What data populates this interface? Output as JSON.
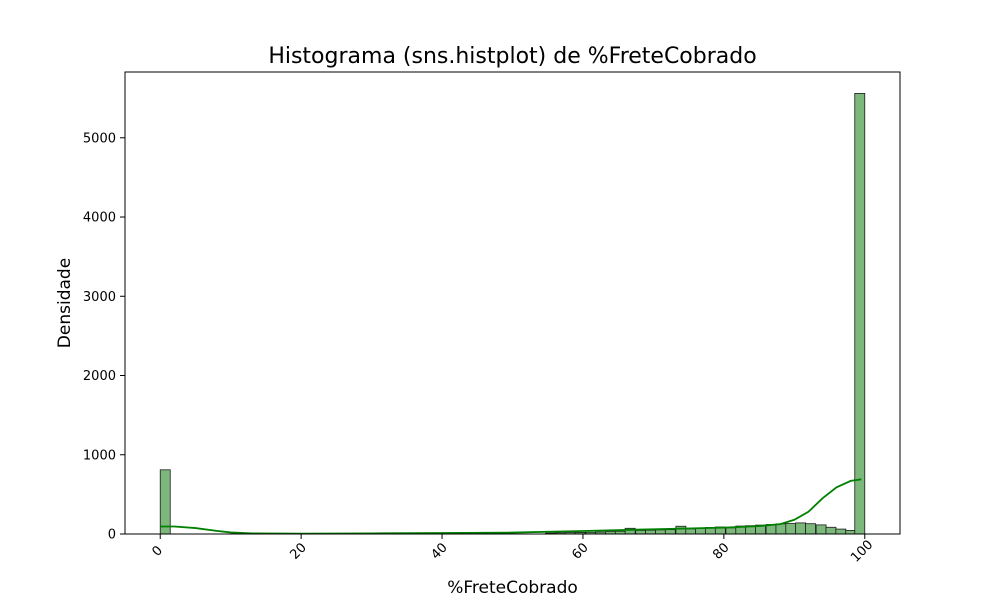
{
  "chart_data": {
    "type": "bar",
    "title": "Histograma (sns.histplot) de %FreteCobrado",
    "xlabel": "%FreteCobrado",
    "ylabel": "Densidade",
    "xlim": [
      -5,
      105
    ],
    "ylim": [
      0,
      5830
    ],
    "xticks": [
      0,
      20,
      40,
      60,
      80,
      100
    ],
    "yticks": [
      0,
      1000,
      2000,
      3000,
      4000,
      5000
    ],
    "bin_width": 1.42,
    "grid": false,
    "colors": {
      "bar_fill": "#7cb87c",
      "bar_edge": "#1a1a1a",
      "kde_line": "#008000"
    },
    "bins": [
      {
        "x": 0.71,
        "count": 810
      },
      {
        "x": 55.4,
        "count": 12
      },
      {
        "x": 56.8,
        "count": 15
      },
      {
        "x": 58.2,
        "count": 18
      },
      {
        "x": 59.6,
        "count": 20
      },
      {
        "x": 61.1,
        "count": 22
      },
      {
        "x": 62.5,
        "count": 25
      },
      {
        "x": 63.9,
        "count": 30
      },
      {
        "x": 65.3,
        "count": 35
      },
      {
        "x": 66.7,
        "count": 72
      },
      {
        "x": 68.2,
        "count": 45
      },
      {
        "x": 69.6,
        "count": 48
      },
      {
        "x": 71.0,
        "count": 52
      },
      {
        "x": 72.4,
        "count": 55
      },
      {
        "x": 73.9,
        "count": 98
      },
      {
        "x": 75.3,
        "count": 65
      },
      {
        "x": 76.7,
        "count": 70
      },
      {
        "x": 78.1,
        "count": 82
      },
      {
        "x": 79.5,
        "count": 88
      },
      {
        "x": 81.0,
        "count": 78
      },
      {
        "x": 82.4,
        "count": 100
      },
      {
        "x": 83.8,
        "count": 105
      },
      {
        "x": 85.2,
        "count": 112
      },
      {
        "x": 86.7,
        "count": 120
      },
      {
        "x": 88.1,
        "count": 128
      },
      {
        "x": 89.5,
        "count": 132
      },
      {
        "x": 90.9,
        "count": 140
      },
      {
        "x": 92.3,
        "count": 130
      },
      {
        "x": 93.8,
        "count": 115
      },
      {
        "x": 95.2,
        "count": 85
      },
      {
        "x": 96.6,
        "count": 62
      },
      {
        "x": 98.0,
        "count": 45
      },
      {
        "x": 99.29,
        "count": 5560
      }
    ],
    "kde": {
      "x": [
        0,
        2,
        5,
        8,
        10,
        13,
        20,
        30,
        40,
        50,
        60,
        70,
        80,
        85,
        88,
        90,
        92,
        94,
        96,
        98,
        99.5
      ],
      "y": [
        95,
        95,
        75,
        40,
        20,
        8,
        5,
        8,
        12,
        18,
        38,
        60,
        80,
        100,
        125,
        180,
        280,
        450,
        590,
        670,
        690
      ]
    }
  }
}
